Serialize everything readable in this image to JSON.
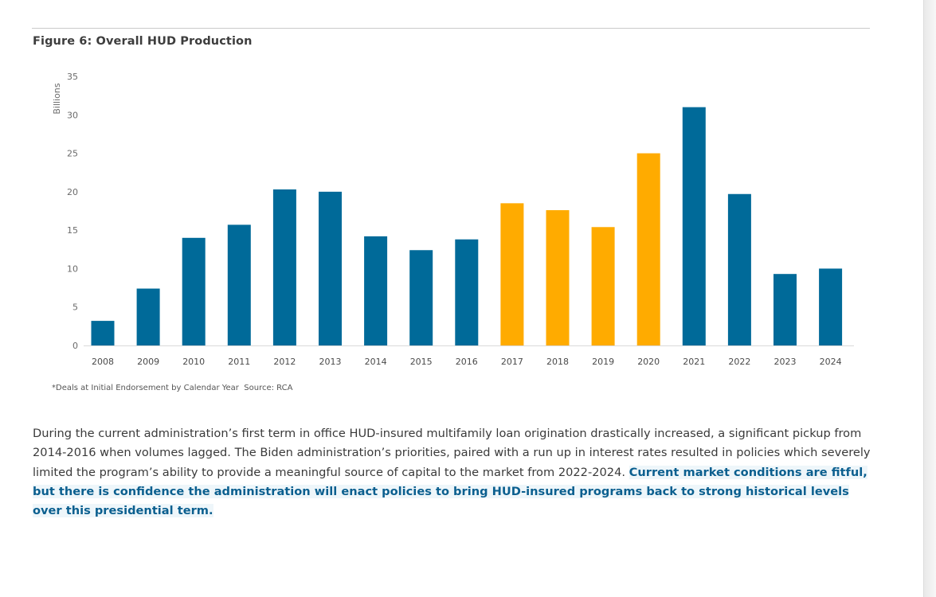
{
  "figure_title": "Figure 6: Overall HUD Production",
  "colors": {
    "blue": "#006a99",
    "orange": "#ffab00"
  },
  "chart_data": {
    "type": "bar",
    "ylabel": "Billions",
    "ylim": [
      0,
      35
    ],
    "yticks": [
      0,
      5,
      10,
      15,
      20,
      25,
      30,
      35
    ],
    "grid": false,
    "categories": [
      "2008",
      "2009",
      "2010",
      "2011",
      "2012",
      "2013",
      "2014",
      "2015",
      "2016",
      "2017",
      "2018",
      "2019",
      "2020",
      "2021",
      "2022",
      "2023",
      "2024"
    ],
    "values": [
      3.2,
      7.4,
      14.0,
      15.7,
      20.3,
      20.0,
      14.2,
      12.4,
      13.8,
      18.5,
      17.6,
      15.4,
      25.0,
      31.0,
      19.7,
      9.3,
      10.0
    ],
    "bar_colors": [
      "blue",
      "blue",
      "blue",
      "blue",
      "blue",
      "blue",
      "blue",
      "blue",
      "blue",
      "orange",
      "orange",
      "orange",
      "orange",
      "blue",
      "blue",
      "blue",
      "blue"
    ]
  },
  "footnote": "*Deals at Initial Endorsement by Calendar Year  Source: RCA",
  "paragraph": {
    "plain": "During the current administration’s first term in office HUD-insured multifamily loan origination drastically increased, a significant pickup from 2014-2016 when volumes lagged. The Biden administration’s priorities, paired with a run up in interest rates resulted in policies which severely limited the program’s ability to provide a meaningful source of capital to the market from 2022-2024. ",
    "bold": "Current market conditions are fitful, but there is confidence the administration will enact policies to bring HUD-insured programs back to strong historical levels over this presidential term."
  }
}
